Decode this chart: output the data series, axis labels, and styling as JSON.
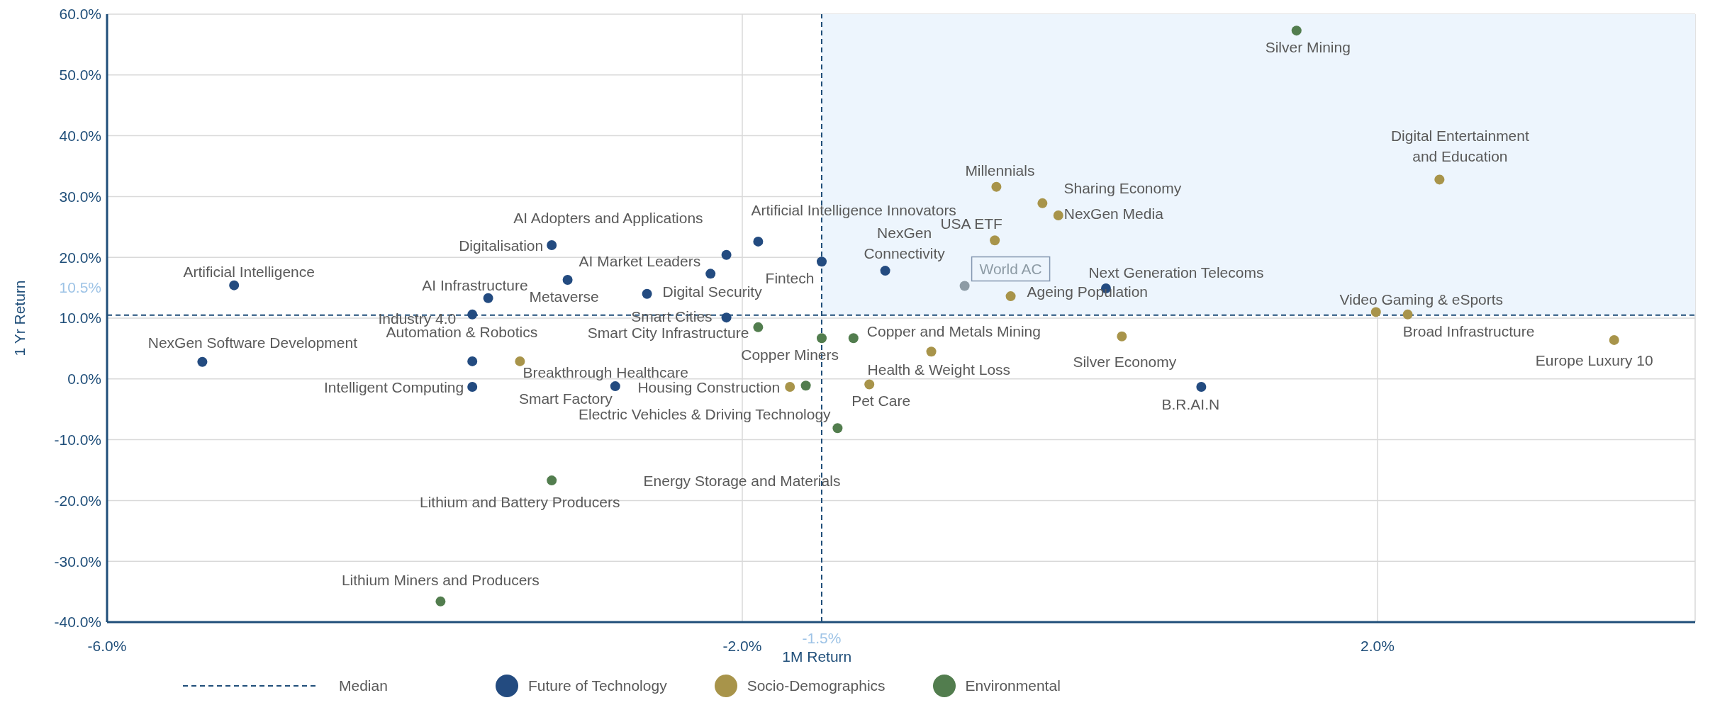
{
  "chart_data": {
    "type": "scatter",
    "xlabel": "1M Return",
    "ylabel": "1 Yr Return",
    "xlim": [
      -6,
      4
    ],
    "xticks": [
      {
        "value": -6,
        "label": "-6.0%"
      },
      {
        "value": -2,
        "label": "-2.0%"
      },
      {
        "value": 2,
        "label": "2.0%"
      }
    ],
    "ylim": [
      -40,
      60
    ],
    "yticks": [
      {
        "value": -40,
        "label": "-40.0%"
      },
      {
        "value": -30,
        "label": "-30.0%"
      },
      {
        "value": -20,
        "label": "-20.0%"
      },
      {
        "value": -10,
        "label": "-10.0%"
      },
      {
        "value": 0,
        "label": "0.0%"
      },
      {
        "value": 10,
        "label": "10.0%"
      },
      {
        "value": 20,
        "label": "20.0%"
      },
      {
        "value": 30,
        "label": "30.0%"
      },
      {
        "value": 40,
        "label": "40.0%"
      },
      {
        "value": 50,
        "label": "50.0%"
      },
      {
        "value": 60,
        "label": "60.0%"
      }
    ],
    "grid": true,
    "legend": "bottom",
    "marker": "circle",
    "ref_lines": [
      {
        "axis": "x",
        "value": -1.5,
        "label": "-1.5%",
        "color": "#1f4e79",
        "line_style": "dashed"
      },
      {
        "axis": "y",
        "value": 10.5,
        "label": "10.5%",
        "color": "#1f4e79",
        "line_style": "dashed"
      }
    ],
    "bands": [
      {
        "axis": "x",
        "from": -1.5,
        "to": 4,
        "color": "#edf5fd"
      }
    ],
    "annotations": [
      "Median"
    ],
    "series": [
      {
        "name": "Future of Technology",
        "color": "#234b80",
        "x": [
          -5.2,
          -5.4,
          -3.2,
          -3.6,
          -3.7,
          -3.7,
          -3.7,
          -3.1,
          -2.2,
          -2.6,
          -2.1,
          -1.9,
          -1.5,
          -2.1,
          -2.8,
          -1.1,
          0.29,
          0.89
        ],
        "values": [
          15.4,
          2.8,
          22.0,
          13.3,
          10.6,
          2.9,
          -1.3,
          16.3,
          17.3,
          14.0,
          20.4,
          22.6,
          19.3,
          10.1,
          -1.2,
          17.8,
          14.9,
          -1.3
        ],
        "value_labels": [
          "Artificial Intelligence",
          "NexGen Software Development",
          "Digitalisation",
          "AI Infrastructure",
          "Industry 4.0",
          "Automation & Robotics",
          "Intelligent Computing",
          "Metaverse",
          "AI Market Leaders",
          "Digital Security",
          "AI Adopters and Applications",
          "Artificial Intelligence Innovators",
          "Fintech",
          "Smart Cities",
          "Smart Factory",
          "NexGen\nConnectivity",
          "Next Generation Telecoms",
          "B.R.AI.N"
        ]
      },
      {
        "name": "Socio-Demographics",
        "color": "#a8944a",
        "x": [
          -3.4,
          -1.7,
          -1.2,
          -0.81,
          -0.4,
          -0.11,
          -0.01,
          -0.41,
          -0.31,
          0.39,
          1.99,
          2.19,
          3.49,
          2.39
        ],
        "values": [
          2.9,
          -1.3,
          -0.9,
          4.5,
          31.6,
          28.9,
          26.9,
          22.8,
          13.6,
          7.0,
          11.0,
          10.6,
          6.4,
          32.8
        ],
        "value_labels": [
          "Breakthrough Healthcare",
          "Housing Construction",
          "Pet Care",
          "Health & Weight Loss",
          "Millennials",
          "Sharing Economy",
          "NexGen Media",
          "USA ETF",
          "Ageing Population",
          "Silver Economy",
          "Video Gaming & eSports",
          "Broad Infrastructure",
          "Europe Luxury 10",
          "Digital Entertainment\nand Education"
        ]
      },
      {
        "name": "Environmental",
        "color": "#527d4e",
        "x": [
          -1.9,
          -1.5,
          -1.3,
          -1.6,
          -1.4,
          -3.2,
          -3.9,
          1.49
        ],
        "values": [
          8.5,
          6.7,
          6.7,
          -1.1,
          -8.1,
          -16.7,
          -36.6,
          57.3
        ],
        "value_labels": [
          "Smart City Infrastructure",
          "Copper Miners",
          "Copper and Metals Mining",
          "Electric Vehicles & Driving Technology",
          "Energy Storage and Materials",
          "Lithium and Battery Producers",
          "Lithium Miners and Producers",
          "Silver Mining"
        ]
      },
      {
        "name": "World AC",
        "color": "#8d9ba5",
        "x": [
          -0.6
        ],
        "values": [
          15.3
        ]
      }
    ]
  }
}
